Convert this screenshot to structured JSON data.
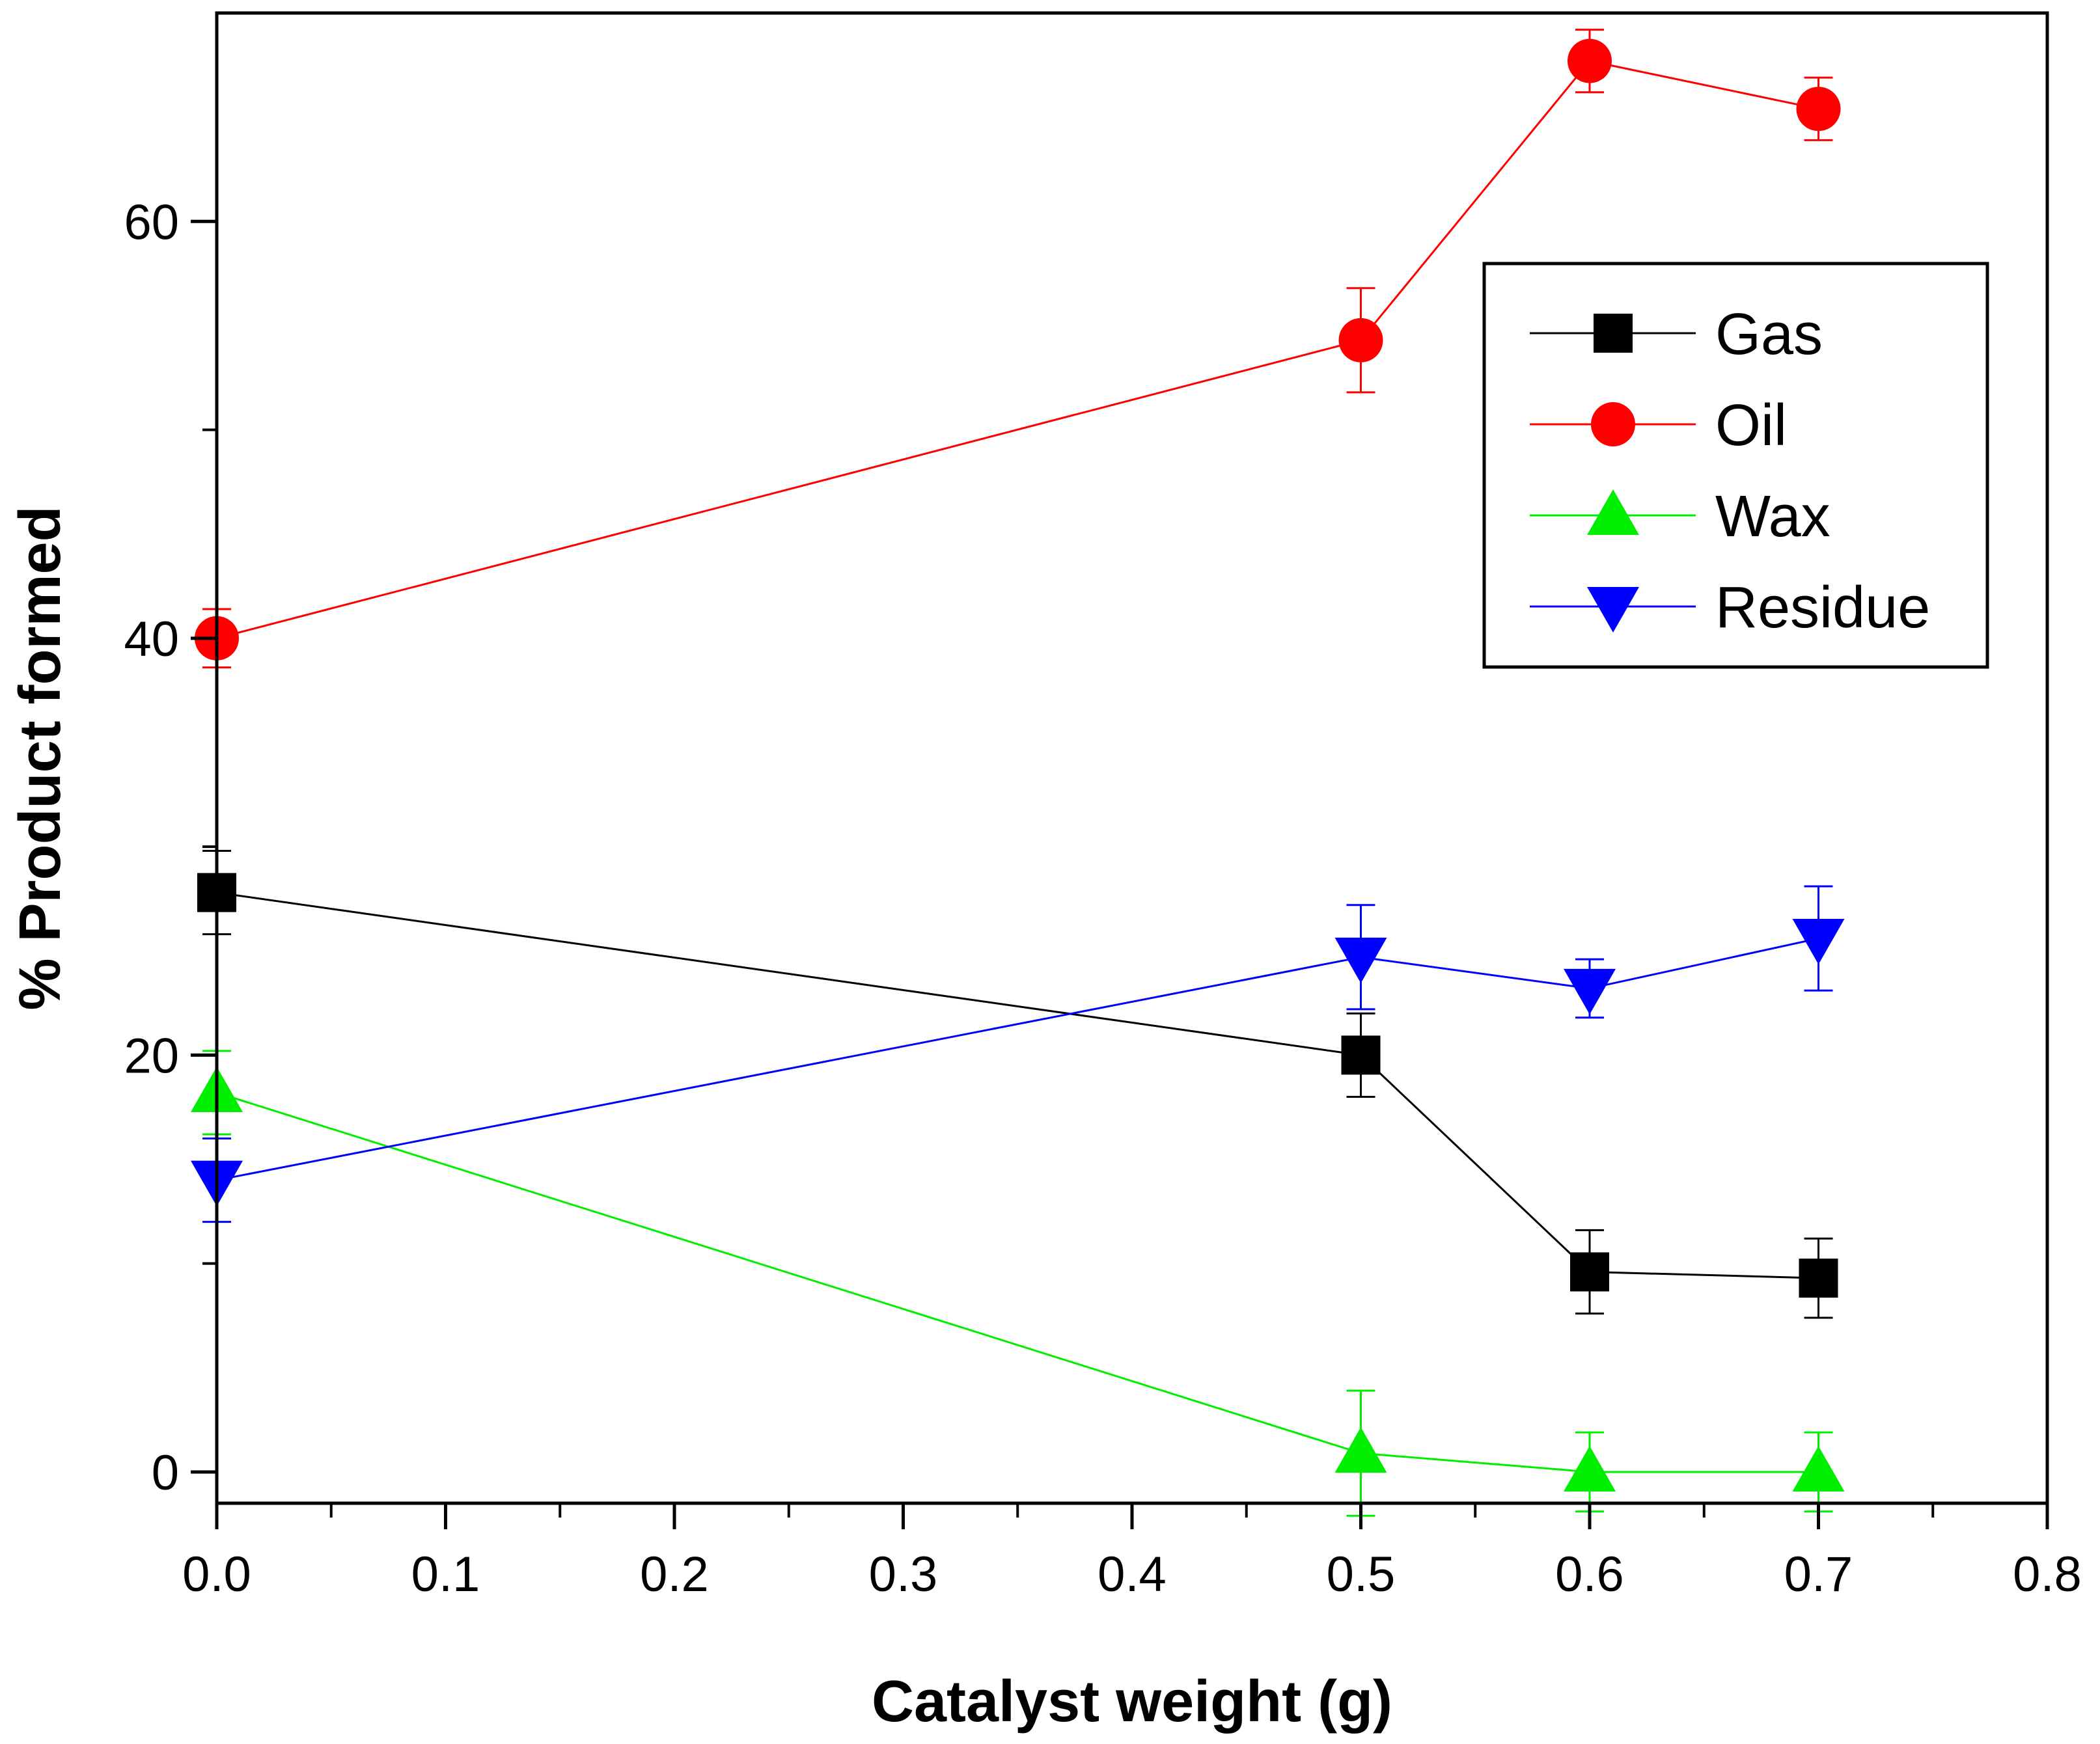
{
  "chart_data": {
    "type": "line",
    "title": "",
    "xlabel": "Catalyst weight (g)",
    "ylabel": "% Product formed",
    "xlim": [
      0.0,
      0.8
    ],
    "ylim": [
      -1.5,
      70
    ],
    "x_ticks": [
      0.0,
      0.1,
      0.2,
      0.3,
      0.4,
      0.5,
      0.6,
      0.7,
      0.8
    ],
    "x_tick_labels": [
      "0.0",
      "0.1",
      "0.2",
      "0.3",
      "0.4",
      "0.5",
      "0.6",
      "0.7",
      "0.8"
    ],
    "y_ticks": [
      0,
      20,
      40,
      60
    ],
    "y_tick_labels": [
      "0",
      "20",
      "40",
      "60"
    ],
    "grid": false,
    "legend_position": "top-right",
    "x": [
      0.0,
      0.5,
      0.6,
      0.7
    ],
    "series": [
      {
        "name": "Gas",
        "color": "#000000",
        "marker": "square",
        "values": [
          27.8,
          20.0,
          9.6,
          9.3
        ],
        "errors": [
          2.0,
          2.0,
          2.0,
          1.9
        ]
      },
      {
        "name": "Oil",
        "color": "#ff0000",
        "marker": "circle",
        "values": [
          40.0,
          54.3,
          67.7,
          65.4
        ],
        "errors": [
          1.4,
          2.5,
          1.5,
          1.5
        ]
      },
      {
        "name": "Wax",
        "color": "#00ee00",
        "marker": "triangle-up",
        "values": [
          18.2,
          0.9,
          0.0,
          0.0
        ],
        "errors": [
          2.0,
          3.0,
          1.9,
          1.9
        ]
      },
      {
        "name": "Residue",
        "color": "#0000ff",
        "marker": "triangle-down",
        "values": [
          14.0,
          24.7,
          23.2,
          25.6
        ],
        "errors": [
          2.0,
          2.5,
          1.4,
          2.5
        ]
      }
    ]
  }
}
